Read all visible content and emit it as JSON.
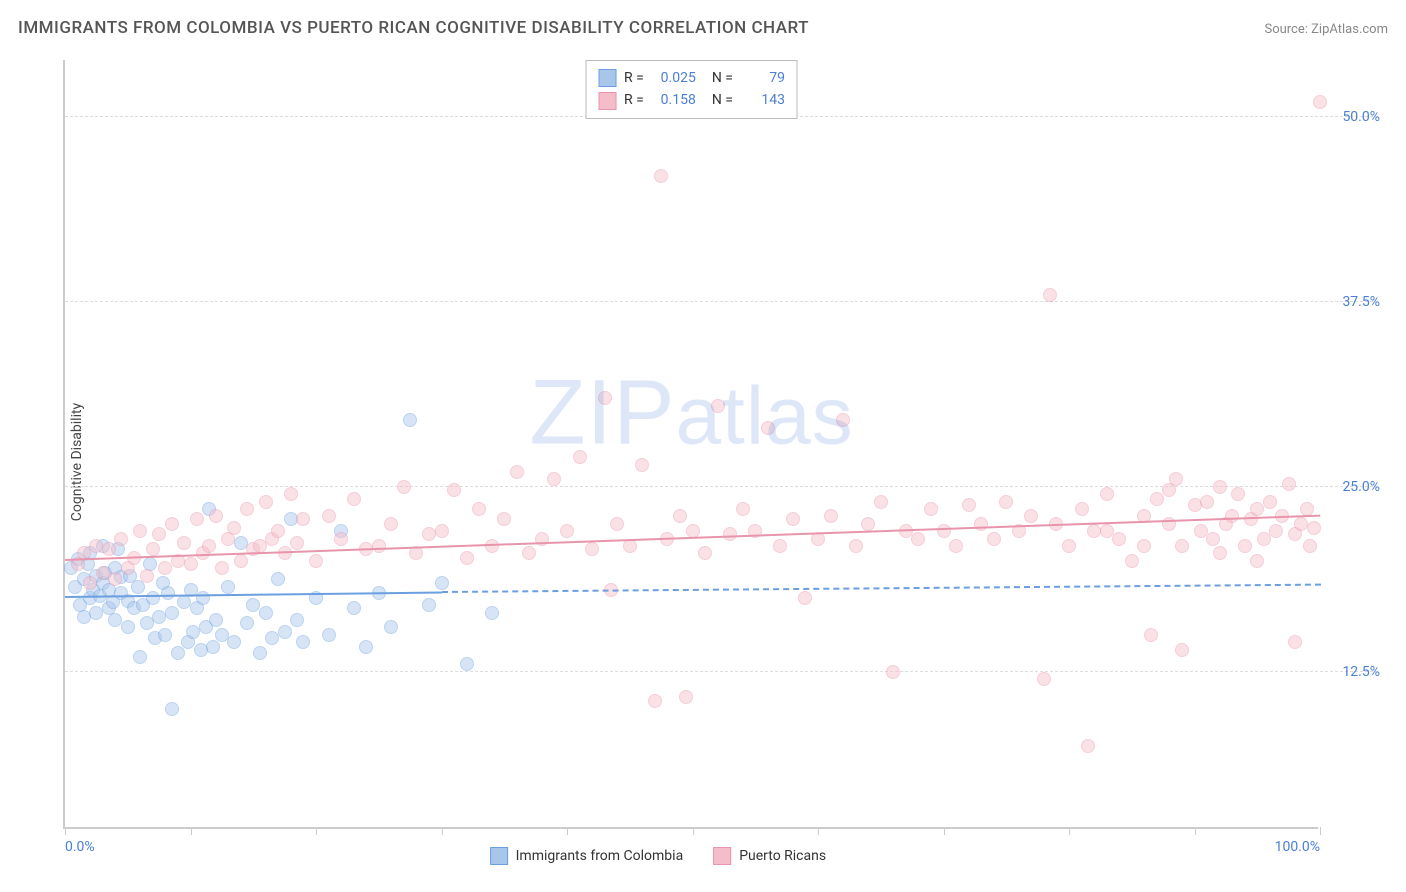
{
  "title": "IMMIGRANTS FROM COLOMBIA VS PUERTO RICAN COGNITIVE DISABILITY CORRELATION CHART",
  "source_label": "Source: ZipAtlas.com",
  "ylabel": "Cognitive Disability",
  "watermark": "ZIPatlas",
  "chart": {
    "type": "scatter",
    "background_color": "#ffffff",
    "grid_color": "#dddddd",
    "axis_color": "#cccccc",
    "tick_label_color": "#4a7fd6",
    "tick_fontsize": 14,
    "label_fontsize": 14,
    "title_fontsize": 17,
    "xlim": [
      0,
      100
    ],
    "ylim": [
      2,
      54
    ],
    "xtick_positions": [
      0,
      10,
      20,
      30,
      40,
      50,
      60,
      70,
      80,
      90,
      100
    ],
    "xtick_labels_show": [
      0,
      100
    ],
    "xtick_labels": {
      "0": "0.0%",
      "100": "100.0%"
    },
    "ytick_positions": [
      12.5,
      25.0,
      37.5,
      50.0
    ],
    "ytick_labels": [
      "12.5%",
      "25.0%",
      "37.5%",
      "50.0%"
    ],
    "marker_radius": 7,
    "marker_opacity": 0.45,
    "line_width": 2
  },
  "series": [
    {
      "id": "colombia",
      "label": "Immigrants from Colombia",
      "color_stroke": "#6b9fe0",
      "color_fill": "#a8c5ea",
      "R": "0.025",
      "N": "79",
      "regression": {
        "x1": 0,
        "y1": 17.5,
        "x2": 30,
        "y2": 17.8,
        "extend_dash_to": 100,
        "y_extend": 18.3
      },
      "points": [
        [
          0.5,
          19.5
        ],
        [
          0.8,
          18.2
        ],
        [
          1.0,
          20.1
        ],
        [
          1.2,
          17.0
        ],
        [
          1.5,
          18.8
        ],
        [
          1.5,
          16.2
        ],
        [
          1.8,
          19.8
        ],
        [
          2.0,
          17.5
        ],
        [
          2.0,
          20.5
        ],
        [
          2.2,
          18.0
        ],
        [
          2.5,
          19.0
        ],
        [
          2.5,
          16.5
        ],
        [
          2.8,
          17.6
        ],
        [
          3.0,
          21.0
        ],
        [
          3.0,
          18.5
        ],
        [
          3.2,
          19.2
        ],
        [
          3.5,
          16.8
        ],
        [
          3.5,
          18.0
        ],
        [
          3.8,
          17.2
        ],
        [
          4.0,
          19.5
        ],
        [
          4.0,
          16.0
        ],
        [
          4.2,
          20.8
        ],
        [
          4.5,
          17.8
        ],
        [
          4.5,
          18.9
        ],
        [
          5.0,
          17.3
        ],
        [
          5.0,
          15.5
        ],
        [
          5.2,
          19.0
        ],
        [
          5.5,
          16.8
        ],
        [
          5.8,
          18.2
        ],
        [
          6.0,
          13.5
        ],
        [
          6.2,
          17.0
        ],
        [
          6.5,
          15.8
        ],
        [
          6.8,
          19.8
        ],
        [
          7.0,
          17.5
        ],
        [
          7.2,
          14.8
        ],
        [
          7.5,
          16.2
        ],
        [
          7.8,
          18.5
        ],
        [
          8.0,
          15.0
        ],
        [
          8.2,
          17.8
        ],
        [
          8.5,
          16.5
        ],
        [
          8.5,
          10.0
        ],
        [
          9.0,
          13.8
        ],
        [
          9.5,
          17.2
        ],
        [
          9.8,
          14.5
        ],
        [
          10.0,
          18.0
        ],
        [
          10.2,
          15.2
        ],
        [
          10.5,
          16.8
        ],
        [
          10.8,
          14.0
        ],
        [
          11.0,
          17.5
        ],
        [
          11.2,
          15.5
        ],
        [
          11.5,
          23.5
        ],
        [
          11.8,
          14.2
        ],
        [
          12.0,
          16.0
        ],
        [
          12.5,
          15.0
        ],
        [
          13.0,
          18.2
        ],
        [
          13.5,
          14.5
        ],
        [
          14.0,
          21.2
        ],
        [
          14.5,
          15.8
        ],
        [
          15.0,
          17.0
        ],
        [
          15.5,
          13.8
        ],
        [
          16.0,
          16.5
        ],
        [
          16.5,
          14.8
        ],
        [
          17.0,
          18.8
        ],
        [
          17.5,
          15.2
        ],
        [
          18.0,
          22.8
        ],
        [
          18.5,
          16.0
        ],
        [
          19.0,
          14.5
        ],
        [
          20.0,
          17.5
        ],
        [
          21.0,
          15.0
        ],
        [
          22.0,
          22.0
        ],
        [
          23.0,
          16.8
        ],
        [
          24.0,
          14.2
        ],
        [
          25.0,
          17.8
        ],
        [
          26.0,
          15.5
        ],
        [
          27.5,
          29.5
        ],
        [
          29.0,
          17.0
        ],
        [
          30.0,
          18.5
        ],
        [
          32.0,
          13.0
        ],
        [
          34.0,
          16.5
        ]
      ]
    },
    {
      "id": "puertorico",
      "label": "Puerto Ricans",
      "color_stroke": "#e895ac",
      "color_fill": "#f5bdc9",
      "R": "0.158",
      "N": "143",
      "regression": {
        "x1": 0,
        "y1": 20.0,
        "x2": 100,
        "y2": 23.0
      },
      "points": [
        [
          1.0,
          19.8
        ],
        [
          1.5,
          20.5
        ],
        [
          2.0,
          18.5
        ],
        [
          2.5,
          21.0
        ],
        [
          3.0,
          19.2
        ],
        [
          3.5,
          20.8
        ],
        [
          4.0,
          18.8
        ],
        [
          4.5,
          21.5
        ],
        [
          5.0,
          19.5
        ],
        [
          5.5,
          20.2
        ],
        [
          6.0,
          22.0
        ],
        [
          6.5,
          19.0
        ],
        [
          7.0,
          20.8
        ],
        [
          7.5,
          21.8
        ],
        [
          8.0,
          19.5
        ],
        [
          8.5,
          22.5
        ],
        [
          9.0,
          20.0
        ],
        [
          9.5,
          21.2
        ],
        [
          10.0,
          19.8
        ],
        [
          10.5,
          22.8
        ],
        [
          11.0,
          20.5
        ],
        [
          11.5,
          21.0
        ],
        [
          12.0,
          23.0
        ],
        [
          12.5,
          19.5
        ],
        [
          13.0,
          21.5
        ],
        [
          13.5,
          22.2
        ],
        [
          14.0,
          20.0
        ],
        [
          14.5,
          23.5
        ],
        [
          15.0,
          20.8
        ],
        [
          15.5,
          21.0
        ],
        [
          16.0,
          24.0
        ],
        [
          16.5,
          21.5
        ],
        [
          17.0,
          22.0
        ],
        [
          17.5,
          20.5
        ],
        [
          18.0,
          24.5
        ],
        [
          18.5,
          21.2
        ],
        [
          19.0,
          22.8
        ],
        [
          20.0,
          20.0
        ],
        [
          21.0,
          23.0
        ],
        [
          22.0,
          21.5
        ],
        [
          23.0,
          24.2
        ],
        [
          24.0,
          20.8
        ],
        [
          25.0,
          21.0
        ],
        [
          26.0,
          22.5
        ],
        [
          27.0,
          25.0
        ],
        [
          28.0,
          20.5
        ],
        [
          29.0,
          21.8
        ],
        [
          30.0,
          22.0
        ],
        [
          31.0,
          24.8
        ],
        [
          32.0,
          20.2
        ],
        [
          33.0,
          23.5
        ],
        [
          34.0,
          21.0
        ],
        [
          35.0,
          22.8
        ],
        [
          36.0,
          26.0
        ],
        [
          37.0,
          20.5
        ],
        [
          38.0,
          21.5
        ],
        [
          39.0,
          25.5
        ],
        [
          40.0,
          22.0
        ],
        [
          41.0,
          27.0
        ],
        [
          42.0,
          20.8
        ],
        [
          43.0,
          31.0
        ],
        [
          43.5,
          18.0
        ],
        [
          44.0,
          22.5
        ],
        [
          45.0,
          21.0
        ],
        [
          46.0,
          26.5
        ],
        [
          47.0,
          10.5
        ],
        [
          47.5,
          46.0
        ],
        [
          48.0,
          21.5
        ],
        [
          49.0,
          23.0
        ],
        [
          49.5,
          10.8
        ],
        [
          50.0,
          22.0
        ],
        [
          51.0,
          20.5
        ],
        [
          52.0,
          30.5
        ],
        [
          53.0,
          21.8
        ],
        [
          54.0,
          23.5
        ],
        [
          55.0,
          22.0
        ],
        [
          56.0,
          29.0
        ],
        [
          57.0,
          21.0
        ],
        [
          58.0,
          22.8
        ],
        [
          59.0,
          17.5
        ],
        [
          60.0,
          21.5
        ],
        [
          61.0,
          23.0
        ],
        [
          62.0,
          29.5
        ],
        [
          63.0,
          21.0
        ],
        [
          64.0,
          22.5
        ],
        [
          65.0,
          24.0
        ],
        [
          66.0,
          12.5
        ],
        [
          67.0,
          22.0
        ],
        [
          68.0,
          21.5
        ],
        [
          69.0,
          23.5
        ],
        [
          70.0,
          22.0
        ],
        [
          71.0,
          21.0
        ],
        [
          72.0,
          23.8
        ],
        [
          73.0,
          22.5
        ],
        [
          74.0,
          21.5
        ],
        [
          75.0,
          24.0
        ],
        [
          76.0,
          22.0
        ],
        [
          77.0,
          23.0
        ],
        [
          78.0,
          12.0
        ],
        [
          78.5,
          38.0
        ],
        [
          79.0,
          22.5
        ],
        [
          80.0,
          21.0
        ],
        [
          81.0,
          23.5
        ],
        [
          81.5,
          7.5
        ],
        [
          82.0,
          22.0
        ],
        [
          83.0,
          24.5
        ],
        [
          84.0,
          21.5
        ],
        [
          85.0,
          20.0
        ],
        [
          86.0,
          23.0
        ],
        [
          86.5,
          15.0
        ],
        [
          87.0,
          24.2
        ],
        [
          88.0,
          22.5
        ],
        [
          88.5,
          25.5
        ],
        [
          89.0,
          21.0
        ],
        [
          90.0,
          23.8
        ],
        [
          90.5,
          22.0
        ],
        [
          91.0,
          24.0
        ],
        [
          91.5,
          21.5
        ],
        [
          92.0,
          25.0
        ],
        [
          92.5,
          22.5
        ],
        [
          93.0,
          23.0
        ],
        [
          93.5,
          24.5
        ],
        [
          94.0,
          21.0
        ],
        [
          94.5,
          22.8
        ],
        [
          95.0,
          23.5
        ],
        [
          95.5,
          21.5
        ],
        [
          96.0,
          24.0
        ],
        [
          96.5,
          22.0
        ],
        [
          97.0,
          23.0
        ],
        [
          97.5,
          25.2
        ],
        [
          98.0,
          21.8
        ],
        [
          98.5,
          22.5
        ],
        [
          99.0,
          23.5
        ],
        [
          99.2,
          21.0
        ],
        [
          99.5,
          22.2
        ],
        [
          100.0,
          51.0
        ],
        [
          98.0,
          14.5
        ],
        [
          95.0,
          20.0
        ],
        [
          92.0,
          20.5
        ],
        [
          89.0,
          14.0
        ],
        [
          86.0,
          21.0
        ],
        [
          83.0,
          22.0
        ],
        [
          88.0,
          24.8
        ]
      ]
    }
  ],
  "legend_top": {
    "rows": [
      {
        "series": "colombia",
        "R_label": "R =",
        "N_label": "N ="
      },
      {
        "series": "puertorico",
        "R_label": "R =",
        "N_label": "N ="
      }
    ]
  }
}
